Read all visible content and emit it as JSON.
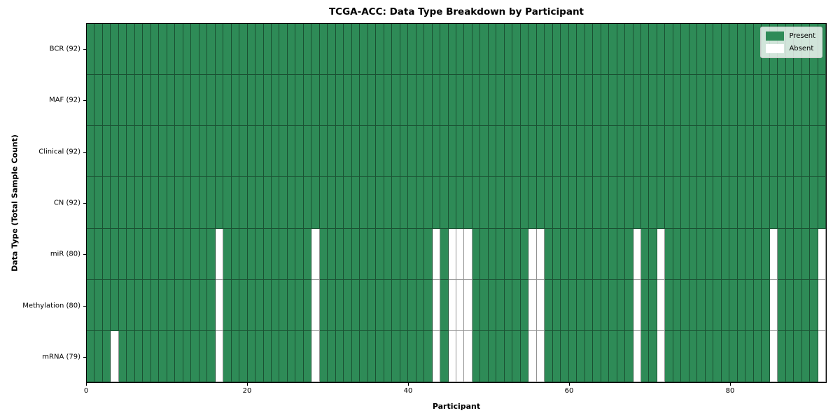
{
  "title": "TCGA-ACC: Data Type Breakdown by Participant",
  "xlabel": "Participant",
  "ylabel": "Data Type (Total Sample Count)",
  "colors": {
    "present": "#2e8b57",
    "absent": "#ffffff"
  },
  "legend": [
    {
      "label": "Present",
      "color": "#2e8b57"
    },
    {
      "label": "Absent",
      "color": "#ffffff"
    }
  ],
  "chart_data": {
    "type": "heatmap",
    "title": "TCGA-ACC: Data Type Breakdown by Participant",
    "xlabel": "Participant",
    "ylabel": "Data Type (Total Sample Count)",
    "x_range": [
      0,
      92
    ],
    "x_ticks": [
      0,
      20,
      40,
      60,
      80
    ],
    "n_participants": 92,
    "legend_position": "upper right",
    "grid": "cell-borders",
    "rows": [
      {
        "label": "BCR (92)",
        "present_count": 92,
        "absent_participants": []
      },
      {
        "label": "MAF (92)",
        "present_count": 92,
        "absent_participants": []
      },
      {
        "label": "Clinical (92)",
        "present_count": 92,
        "absent_participants": []
      },
      {
        "label": "CN (92)",
        "present_count": 92,
        "absent_participants": []
      },
      {
        "label": "miR (80)",
        "present_count": 80,
        "absent_participants": [
          16,
          28,
          43,
          45,
          46,
          47,
          55,
          56,
          68,
          71,
          85,
          91
        ]
      },
      {
        "label": "Methylation (80)",
        "present_count": 80,
        "absent_participants": [
          16,
          28,
          43,
          45,
          46,
          47,
          55,
          56,
          68,
          71,
          85,
          91
        ]
      },
      {
        "label": "mRNA (79)",
        "present_count": 79,
        "absent_participants": [
          3,
          16,
          28,
          43,
          45,
          46,
          47,
          55,
          56,
          68,
          71,
          85,
          91
        ]
      }
    ]
  }
}
